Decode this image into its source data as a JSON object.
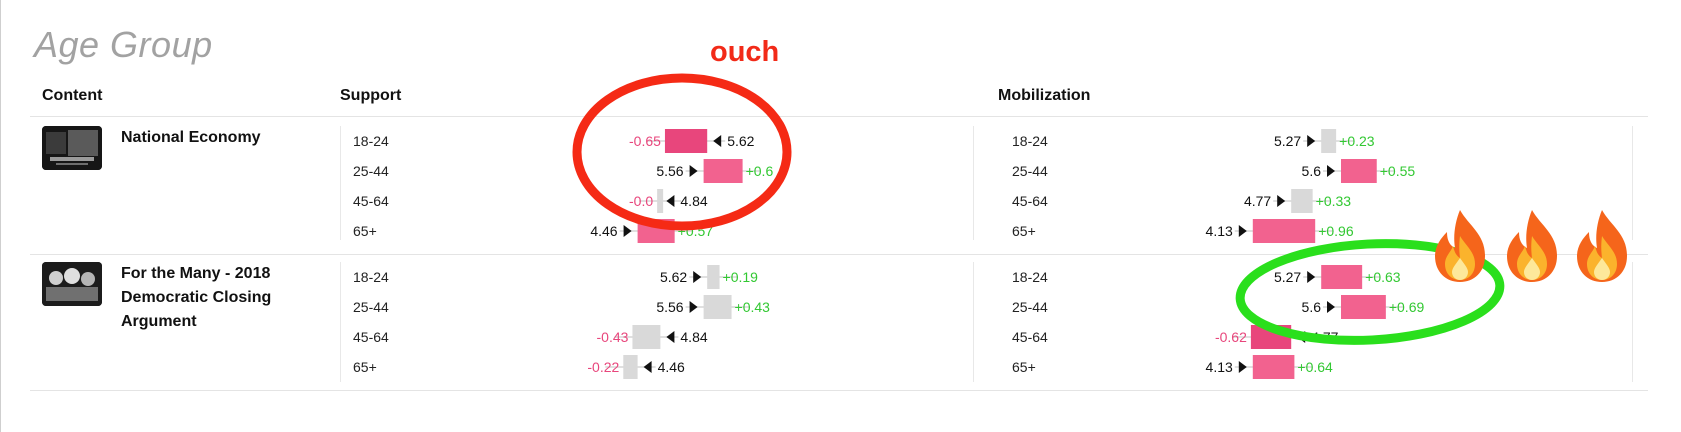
{
  "page_title": "Age Group",
  "columns": {
    "content": "Content",
    "support": "Support",
    "mobilization": "Mobilization"
  },
  "colors": {
    "negative": "#e8467c",
    "positive": "#32c832",
    "neutral_bar": "#d9d9d9",
    "positive_bar": "#f2628f"
  },
  "annotations": {
    "ouch_label": "ouch",
    "red_circle": "red-ellipse",
    "green_circle": "green-ellipse",
    "fire_icons": [
      "fire-icon",
      "fire-icon",
      "fire-icon"
    ]
  },
  "contents": [
    {
      "title_lines": [
        "National Economy"
      ]
    },
    {
      "title_lines": [
        "For the Many - 2018",
        "Democratic Closing",
        "Argument"
      ]
    }
  ],
  "chart_data": {
    "type": "bar",
    "categories": [
      "18-24",
      "25-44",
      "45-64",
      "65+"
    ],
    "panels": [
      {
        "content": "National Economy",
        "metric": "Support",
        "rows": [
          {
            "group": "18-24",
            "baseline": 5.62,
            "change": -0.65,
            "baseline_label": "5.62",
            "change_label": "-0.65"
          },
          {
            "group": "25-44",
            "baseline": 5.56,
            "change": 0.6,
            "baseline_label": "5.56",
            "change_label": "+0.6"
          },
          {
            "group": "45-64",
            "baseline": 4.84,
            "change": -0.05,
            "baseline_label": "4.84",
            "change_label": "-0.0"
          },
          {
            "group": "65+",
            "baseline": 4.46,
            "change": 0.57,
            "baseline_label": "4.46",
            "change_label": "+0.57"
          }
        ]
      },
      {
        "content": "National Economy",
        "metric": "Mobilization",
        "rows": [
          {
            "group": "18-24",
            "baseline": 5.27,
            "change": 0.23,
            "baseline_label": "5.27",
            "change_label": "+0.23"
          },
          {
            "group": "25-44",
            "baseline": 5.6,
            "change": 0.55,
            "baseline_label": "5.6",
            "change_label": "+0.55"
          },
          {
            "group": "45-64",
            "baseline": 4.77,
            "change": 0.33,
            "baseline_label": "4.77",
            "change_label": "+0.33"
          },
          {
            "group": "65+",
            "baseline": 4.13,
            "change": 0.96,
            "baseline_label": "4.13",
            "change_label": "+0.96"
          }
        ]
      },
      {
        "content": "For the Many - 2018 Democratic Closing Argument",
        "metric": "Support",
        "rows": [
          {
            "group": "18-24",
            "baseline": 5.62,
            "change": 0.19,
            "baseline_label": "5.62",
            "change_label": "+0.19"
          },
          {
            "group": "25-44",
            "baseline": 5.56,
            "change": 0.43,
            "baseline_label": "5.56",
            "change_label": "+0.43"
          },
          {
            "group": "45-64",
            "baseline": 4.84,
            "change": -0.43,
            "baseline_label": "4.84",
            "change_label": "-0.43"
          },
          {
            "group": "65+",
            "baseline": 4.46,
            "change": -0.22,
            "baseline_label": "4.46",
            "change_label": "-0.22"
          }
        ]
      },
      {
        "content": "For the Many - 2018 Democratic Closing Argument",
        "metric": "Mobilization",
        "rows": [
          {
            "group": "18-24",
            "baseline": 5.27,
            "change": 0.63,
            "baseline_label": "5.27",
            "change_label": "+0.63"
          },
          {
            "group": "25-44",
            "baseline": 5.6,
            "change": 0.69,
            "baseline_label": "5.6",
            "change_label": "+0.69"
          },
          {
            "group": "45-64",
            "baseline": 4.77,
            "change": -0.62,
            "baseline_label": "4.77",
            "change_label": "-0.62"
          },
          {
            "group": "65+",
            "baseline": 4.13,
            "change": 0.64,
            "baseline_label": "4.13",
            "change_label": "+0.64"
          }
        ]
      }
    ]
  }
}
